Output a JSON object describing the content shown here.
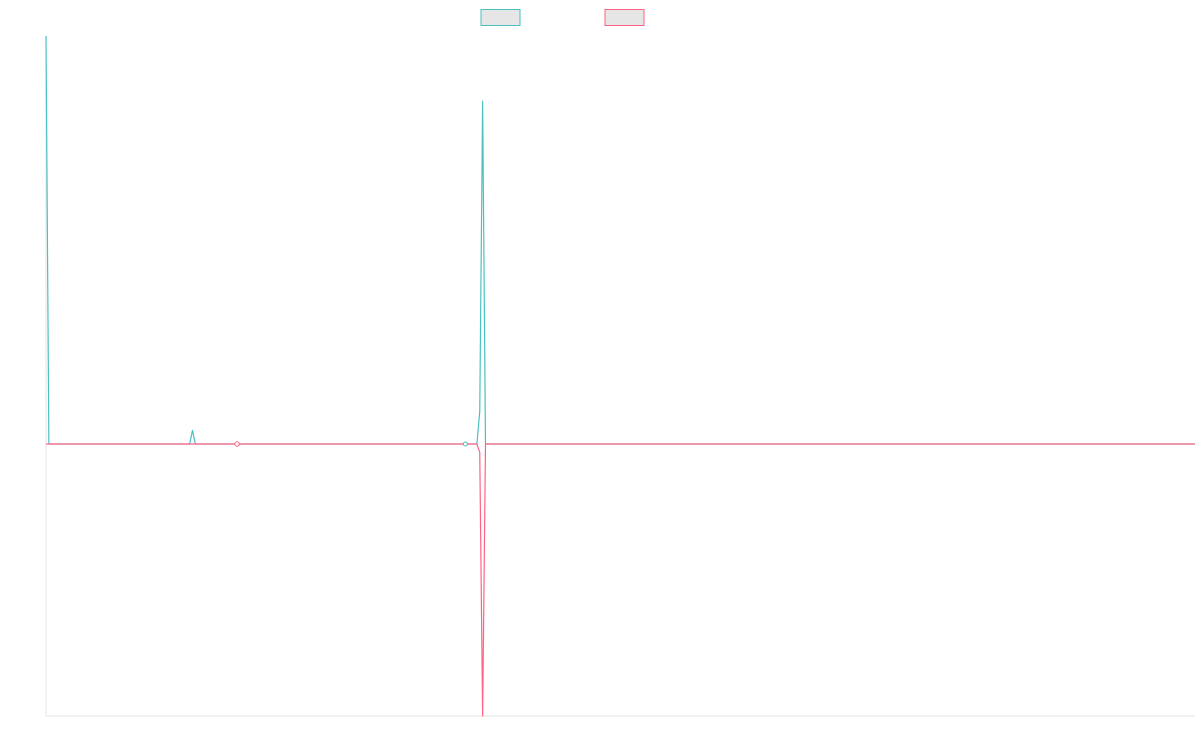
{
  "colors": {
    "series_a": "#4bc0c0",
    "series_b": "#ff6384",
    "swatch_fill": "#e6e6e6",
    "axis": "#e6e6e6"
  },
  "chart_data": {
    "type": "line",
    "title": "",
    "xlabel": "",
    "ylabel": "",
    "grid": false,
    "legend": "top-center",
    "xlim": [
      0,
      400
    ],
    "ylim": [
      -1.0,
      1.5
    ],
    "series": [
      {
        "color_key": "series_a",
        "points": [
          [
            0,
            1.5
          ],
          [
            1,
            0
          ],
          [
            50,
            0
          ],
          [
            51,
            0.05
          ],
          [
            52,
            0
          ],
          [
            145,
            0
          ],
          [
            146,
            0.005
          ],
          [
            147,
            0
          ],
          [
            150,
            0
          ],
          [
            151,
            0.12
          ],
          [
            152,
            1.26
          ],
          [
            153,
            0
          ],
          [
            400,
            0
          ]
        ]
      },
      {
        "color_key": "series_b",
        "points": [
          [
            0,
            0
          ],
          [
            66,
            0
          ],
          [
            67,
            -0.004
          ],
          [
            68,
            0
          ],
          [
            150,
            0
          ],
          [
            151,
            -0.03
          ],
          [
            152,
            -1.0
          ],
          [
            153,
            0
          ],
          [
            400,
            0
          ]
        ]
      }
    ]
  }
}
